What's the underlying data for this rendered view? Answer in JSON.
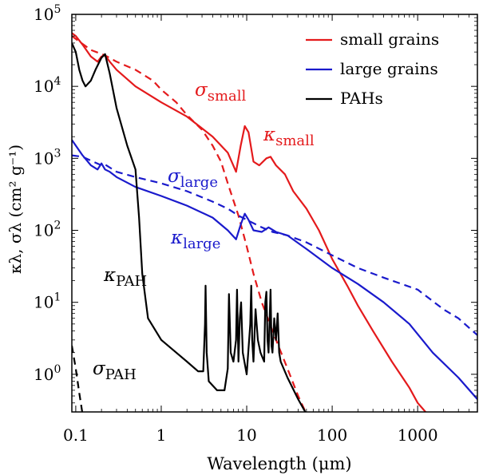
{
  "chart_data": {
    "type": "line",
    "xlabel": "Wavelength (μm)",
    "ylabel": "κλ, σλ (cm² g⁻¹)",
    "xscale": "log",
    "yscale": "log",
    "xlim": [
      0.09,
      5000
    ],
    "ylim": [
      0.3,
      100000
    ],
    "grid": false,
    "legend_position": "top-right",
    "x_tick_labels": [
      "0.1",
      "1",
      "10",
      "100",
      "1000"
    ],
    "y_tick_labels": [
      {
        "base": "10",
        "exp": "0"
      },
      {
        "base": "10",
        "exp": "1"
      },
      {
        "base": "10",
        "exp": "2"
      },
      {
        "base": "10",
        "exp": "3"
      },
      {
        "base": "10",
        "exp": "4"
      },
      {
        "base": "10",
        "exp": "5"
      }
    ],
    "legend": [
      {
        "label": "small grains",
        "color": "#e41a1c"
      },
      {
        "label": "large grains",
        "color": "#1a1acc"
      },
      {
        "label": "PAHs",
        "color": "#000000"
      }
    ],
    "annotations": [
      {
        "symbol": "σ",
        "sub": "small",
        "color": "#e41a1c"
      },
      {
        "symbol": "κ",
        "sub": "small",
        "color": "#e41a1c"
      },
      {
        "symbol": "σ",
        "sub": "large",
        "color": "#1a1acc"
      },
      {
        "symbol": "κ",
        "sub": "large",
        "color": "#1a1acc"
      },
      {
        "symbol": "κ",
        "sub": "PAH",
        "color": "#000000"
      },
      {
        "symbol": "σ",
        "sub": "PAH",
        "color": "#000000"
      }
    ],
    "series": [
      {
        "name": "κ small",
        "color": "#e41a1c",
        "dash": false,
        "points": [
          [
            0.09,
            55000
          ],
          [
            0.1,
            50000
          ],
          [
            0.12,
            38000
          ],
          [
            0.15,
            26000
          ],
          [
            0.18,
            22000
          ],
          [
            0.2,
            26000
          ],
          [
            0.22,
            27000
          ],
          [
            0.25,
            22000
          ],
          [
            0.3,
            17000
          ],
          [
            0.5,
            10000
          ],
          [
            1,
            6000
          ],
          [
            2,
            3800
          ],
          [
            4,
            2000
          ],
          [
            6,
            1200
          ],
          [
            7.5,
            650
          ],
          [
            8.5,
            1500
          ],
          [
            9.5,
            2800
          ],
          [
            10.5,
            2300
          ],
          [
            12,
            900
          ],
          [
            14,
            800
          ],
          [
            17,
            1000
          ],
          [
            19,
            1050
          ],
          [
            22,
            800
          ],
          [
            28,
            600
          ],
          [
            35,
            350
          ],
          [
            50,
            200
          ],
          [
            70,
            100
          ],
          [
            100,
            40
          ],
          [
            150,
            17
          ],
          [
            200,
            9
          ],
          [
            300,
            4
          ],
          [
            500,
            1.5
          ],
          [
            800,
            0.65
          ],
          [
            1000,
            0.4
          ],
          [
            1300,
            0.28
          ]
        ]
      },
      {
        "name": "σ small",
        "color": "#e41a1c",
        "dash": true,
        "points": [
          [
            0.09,
            50000
          ],
          [
            0.15,
            32000
          ],
          [
            0.22,
            27000
          ],
          [
            0.3,
            22000
          ],
          [
            0.5,
            17000
          ],
          [
            0.8,
            12000
          ],
          [
            1,
            9000
          ],
          [
            1.5,
            6000
          ],
          [
            2,
            4000
          ],
          [
            3,
            2500
          ],
          [
            4,
            1500
          ],
          [
            5,
            900
          ],
          [
            6,
            450
          ],
          [
            8,
            160
          ],
          [
            10,
            60
          ],
          [
            12,
            25
          ],
          [
            15,
            10
          ],
          [
            20,
            4
          ],
          [
            30,
            1.2
          ],
          [
            40,
            0.5
          ],
          [
            50,
            0.28
          ]
        ]
      },
      {
        "name": "κ large",
        "color": "#1a1acc",
        "dash": false,
        "points": [
          [
            0.09,
            1800
          ],
          [
            0.12,
            1100
          ],
          [
            0.15,
            800
          ],
          [
            0.18,
            700
          ],
          [
            0.2,
            850
          ],
          [
            0.22,
            700
          ],
          [
            0.25,
            650
          ],
          [
            0.3,
            550
          ],
          [
            0.5,
            400
          ],
          [
            1,
            300
          ],
          [
            2,
            220
          ],
          [
            4,
            150
          ],
          [
            6,
            100
          ],
          [
            7.5,
            75
          ],
          [
            8.5,
            120
          ],
          [
            9.5,
            170
          ],
          [
            10.5,
            140
          ],
          [
            12,
            100
          ],
          [
            15,
            95
          ],
          [
            18,
            110
          ],
          [
            22,
            95
          ],
          [
            30,
            85
          ],
          [
            50,
            55
          ],
          [
            100,
            30
          ],
          [
            200,
            18
          ],
          [
            400,
            10
          ],
          [
            800,
            5
          ],
          [
            1500,
            2
          ],
          [
            3000,
            0.9
          ],
          [
            5000,
            0.45
          ]
        ]
      },
      {
        "name": "σ large",
        "color": "#1a1acc",
        "dash": true,
        "points": [
          [
            0.09,
            1100
          ],
          [
            0.12,
            1050
          ],
          [
            0.16,
            900
          ],
          [
            0.2,
            800
          ],
          [
            0.22,
            820
          ],
          [
            0.3,
            650
          ],
          [
            0.5,
            550
          ],
          [
            1,
            450
          ],
          [
            2,
            350
          ],
          [
            4,
            250
          ],
          [
            6,
            200
          ],
          [
            8,
            160
          ],
          [
            10,
            140
          ],
          [
            15,
            110
          ],
          [
            20,
            95
          ],
          [
            30,
            85
          ],
          [
            50,
            68
          ],
          [
            100,
            45
          ],
          [
            200,
            30
          ],
          [
            400,
            22
          ],
          [
            1000,
            15
          ],
          [
            2000,
            8
          ],
          [
            3000,
            6
          ],
          [
            5000,
            3.5
          ]
        ]
      },
      {
        "name": "κ PAH",
        "color": "#000000",
        "dash": false,
        "points": [
          [
            0.09,
            40000
          ],
          [
            0.1,
            30000
          ],
          [
            0.11,
            17000
          ],
          [
            0.12,
            12000
          ],
          [
            0.13,
            10000
          ],
          [
            0.15,
            12000
          ],
          [
            0.17,
            17000
          ],
          [
            0.2,
            25000
          ],
          [
            0.22,
            28000
          ],
          [
            0.25,
            15000
          ],
          [
            0.3,
            5000
          ],
          [
            0.4,
            1500
          ],
          [
            0.5,
            700
          ],
          [
            0.55,
            150
          ],
          [
            0.6,
            25
          ],
          [
            0.7,
            6
          ],
          [
            1,
            3
          ],
          [
            1.5,
            2
          ],
          [
            2,
            1.5
          ],
          [
            2.7,
            1.1
          ],
          [
            3.1,
            1.1
          ],
          [
            3.25,
            5
          ],
          [
            3.3,
            17
          ],
          [
            3.4,
            2
          ],
          [
            3.6,
            0.8
          ],
          [
            4.5,
            0.6
          ],
          [
            5.5,
            0.6
          ],
          [
            6,
            1.2
          ],
          [
            6.2,
            13
          ],
          [
            6.5,
            2
          ],
          [
            7,
            1.5
          ],
          [
            7.5,
            3
          ],
          [
            7.7,
            15
          ],
          [
            8,
            1.5
          ],
          [
            8.3,
            6
          ],
          [
            8.6,
            10
          ],
          [
            9,
            2
          ],
          [
            10,
            1
          ],
          [
            11,
            5
          ],
          [
            11.3,
            17
          ],
          [
            11.6,
            3
          ],
          [
            12,
            1.5
          ],
          [
            12.7,
            8
          ],
          [
            13.5,
            3
          ],
          [
            14.5,
            2
          ],
          [
            16,
            1.5
          ],
          [
            16.5,
            10
          ],
          [
            17,
            14
          ],
          [
            17.5,
            3
          ],
          [
            18,
            2
          ],
          [
            18.5,
            5
          ],
          [
            19,
            15
          ],
          [
            19.5,
            2.5
          ],
          [
            20,
            2
          ],
          [
            21,
            6
          ],
          [
            22,
            3
          ],
          [
            23,
            7
          ],
          [
            24,
            2
          ],
          [
            25,
            1.5
          ],
          [
            30,
            0.9
          ],
          [
            40,
            0.45
          ],
          [
            50,
            0.28
          ]
        ]
      },
      {
        "name": "σ PAH",
        "color": "#000000",
        "dash": true,
        "points": [
          [
            0.09,
            2.5
          ],
          [
            0.1,
            1.2
          ],
          [
            0.11,
            0.55
          ],
          [
            0.12,
            0.28
          ]
        ]
      }
    ]
  }
}
